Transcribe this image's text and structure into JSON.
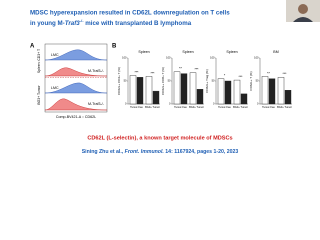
{
  "title": {
    "line1": "MDSC hyperexpansion resulted in CD62L downregulation on T cells",
    "line2_pre": "in young M-",
    "line2_gene": "Traf3",
    "line2_sup": "-/-",
    "line2_post": " mice with transplanted B lymphoma"
  },
  "panel_a": {
    "label": "A",
    "y_label_top": "Spleen: CD3+ T",
    "y_label_bottom": "BG3+ Tumor",
    "x_label": "Comp-BV421-A :: CD62L",
    "ridges": [
      "LMC",
      "M-Traf3-/-",
      "LMC",
      "M-Traf3-/-"
    ]
  },
  "panel_b": {
    "label": "B",
    "groups": [
      "Tumor-free",
      "BG3+ Tumor"
    ],
    "bar_colors": [
      "#ffffff",
      "#222222"
    ],
    "charts": [
      {
        "title": "Spleen",
        "y_label": "CD62L+ CD4+ T (%)",
        "ylim": [
          0,
          100
        ],
        "yticks": [
          0,
          50,
          100
        ],
        "values": [
          [
            62,
            58
          ],
          [
            60,
            28
          ]
        ],
        "stars": [
          "***",
          "***"
        ]
      },
      {
        "title": "Spleen",
        "y_label": "CD62L+ CD8+ T (%)",
        "ylim": [
          0,
          100
        ],
        "yticks": [
          0,
          50,
          100
        ],
        "values": [
          [
            70,
            66
          ],
          [
            68,
            32
          ]
        ],
        "stars": [
          "**",
          "***"
        ]
      },
      {
        "title": "Spleen",
        "y_label": "CD62L+ Treg (%)",
        "ylim": [
          0,
          100
        ],
        "yticks": [
          0,
          50,
          100
        ],
        "values": [
          [
            55,
            50
          ],
          [
            52,
            22
          ]
        ],
        "stars": [
          "*",
          "***"
        ]
      },
      {
        "title": "BM",
        "y_label": "CD62L+ T (%)",
        "ylim": [
          0,
          100
        ],
        "yticks": [
          0,
          50,
          100
        ],
        "values": [
          [
            60,
            55
          ],
          [
            58,
            30
          ]
        ],
        "stars": [
          "**",
          "***"
        ]
      }
    ]
  },
  "footer": {
    "note": "CD62L (L-selectin), a known target molecule of MDSCs",
    "author": "Sining Zhu et al., ",
    "journal": "Front. Immunol.",
    "details": " 14: 1167924, pages 1-20, 2023"
  }
}
